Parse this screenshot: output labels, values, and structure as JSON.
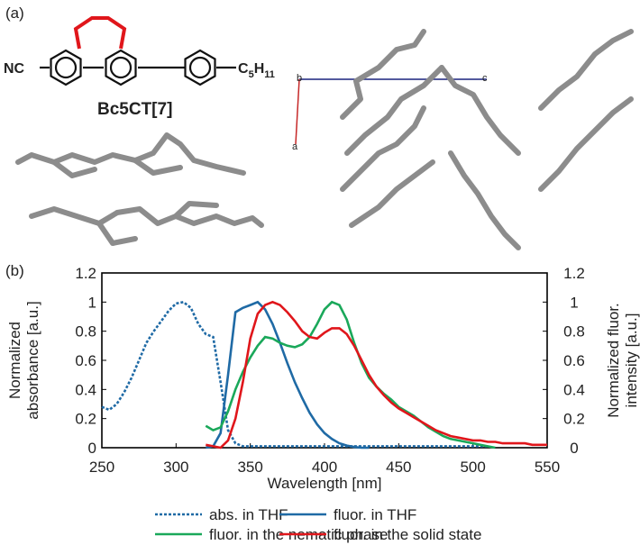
{
  "panel_a": {
    "label": "(a)",
    "nitrile": "NC",
    "pentyl": [
      "C",
      "5",
      "H",
      "11"
    ],
    "compound": "Bc5CT[7]",
    "axes": [
      "b",
      "c",
      "a"
    ]
  },
  "chart_data": {
    "type": "line",
    "panel_label": "(b)",
    "xlabel": "Wavelength [nm]",
    "ylabel": [
      "Normalized",
      "absorbance [a.u.]"
    ],
    "y2label": [
      "Normalized fluor.",
      "intensity [a.u.]"
    ],
    "x": [
      250,
      255,
      260,
      265,
      270,
      275,
      280,
      285,
      290,
      295,
      300,
      305,
      310,
      315,
      320,
      325,
      330,
      335,
      340,
      345,
      350,
      355,
      360,
      365,
      370,
      375,
      380,
      385,
      390,
      395,
      400,
      405,
      410,
      415,
      420,
      425,
      430,
      435,
      440,
      445,
      450,
      455,
      460,
      465,
      470,
      475,
      480,
      485,
      490,
      495,
      500,
      505,
      510,
      515,
      520,
      525,
      530,
      535,
      540,
      545,
      550
    ],
    "xlim": [
      250,
      550
    ],
    "xticks": [
      250,
      300,
      350,
      400,
      450,
      500,
      550
    ],
    "ylim": [
      0,
      1.2
    ],
    "yticks": [
      0,
      0.2,
      0.4,
      0.6,
      0.8,
      1,
      1.2
    ],
    "y2lim": [
      0,
      1.2
    ],
    "y2ticks": [
      0,
      0.2,
      0.4,
      0.6,
      0.8,
      1,
      1.2
    ],
    "series": [
      {
        "name": "abs. in THF",
        "color": "#1f6aa5",
        "style": "dotted",
        "axis": "y",
        "values": [
          0.28,
          0.26,
          0.3,
          0.38,
          0.48,
          0.6,
          0.72,
          0.8,
          0.87,
          0.94,
          0.99,
          1.0,
          0.96,
          0.85,
          0.78,
          0.76,
          0.45,
          0.12,
          0.03,
          0.01,
          0.01,
          0.01,
          0.01,
          0.01,
          0.01,
          0.01,
          0.01,
          0.01,
          0.01,
          0.01,
          0.01,
          0.01,
          0.01,
          0.01,
          0.01,
          0.01,
          0.01,
          0.01,
          0.01,
          0.01,
          0.01,
          0.01,
          0.01,
          0.01,
          0.01,
          0.01,
          0.01,
          0.01,
          0.01,
          0.01,
          0.01,
          0.01,
          0.01,
          null,
          null,
          null,
          null,
          null,
          null,
          null,
          null
        ]
      },
      {
        "name": "fluor. in THF",
        "color": "#1f6aa5",
        "style": "solid",
        "axis": "y2",
        "values": [
          null,
          null,
          null,
          null,
          null,
          null,
          null,
          null,
          null,
          null,
          null,
          null,
          null,
          null,
          0,
          0.01,
          0.1,
          0.5,
          0.93,
          0.96,
          0.98,
          1.0,
          0.95,
          0.85,
          0.72,
          0.58,
          0.45,
          0.34,
          0.24,
          0.16,
          0.1,
          0.06,
          0.03,
          0.015,
          0.005,
          0,
          0,
          null,
          null,
          null,
          null,
          null,
          null,
          null,
          null,
          null,
          null,
          null,
          null,
          null,
          null,
          null,
          null,
          null,
          null,
          null,
          null,
          null,
          null,
          null,
          null
        ]
      },
      {
        "name": "fluor. in the nematic phase",
        "color": "#1aa85a",
        "style": "solid",
        "axis": "y2",
        "values": [
          null,
          null,
          null,
          null,
          null,
          null,
          null,
          null,
          null,
          null,
          null,
          null,
          null,
          null,
          0.15,
          0.12,
          0.14,
          0.25,
          0.4,
          0.52,
          0.62,
          0.7,
          0.76,
          0.75,
          0.72,
          0.7,
          0.69,
          0.71,
          0.76,
          0.85,
          0.95,
          1.0,
          0.98,
          0.88,
          0.72,
          0.58,
          0.48,
          0.42,
          0.37,
          0.33,
          0.28,
          0.25,
          0.22,
          0.18,
          0.14,
          0.11,
          0.08,
          0.06,
          0.05,
          0.04,
          0.03,
          0.02,
          0.01,
          0,
          null,
          null,
          null,
          null,
          null,
          null,
          null
        ]
      },
      {
        "name": "fluor. in the solid state",
        "color": "#e0161b",
        "style": "solid",
        "axis": "y2",
        "values": [
          null,
          null,
          null,
          null,
          null,
          null,
          null,
          null,
          null,
          null,
          null,
          null,
          null,
          null,
          0.02,
          0.01,
          0,
          0.05,
          0.2,
          0.45,
          0.75,
          0.92,
          0.98,
          1.0,
          0.98,
          0.93,
          0.87,
          0.8,
          0.76,
          0.75,
          0.79,
          0.82,
          0.82,
          0.78,
          0.7,
          0.6,
          0.5,
          0.42,
          0.36,
          0.31,
          0.27,
          0.24,
          0.21,
          0.18,
          0.15,
          0.12,
          0.1,
          0.08,
          0.07,
          0.06,
          0.05,
          0.05,
          0.04,
          0.04,
          0.03,
          0.03,
          0.03,
          0.03,
          0.02,
          0.02,
          0.02
        ]
      }
    ]
  }
}
